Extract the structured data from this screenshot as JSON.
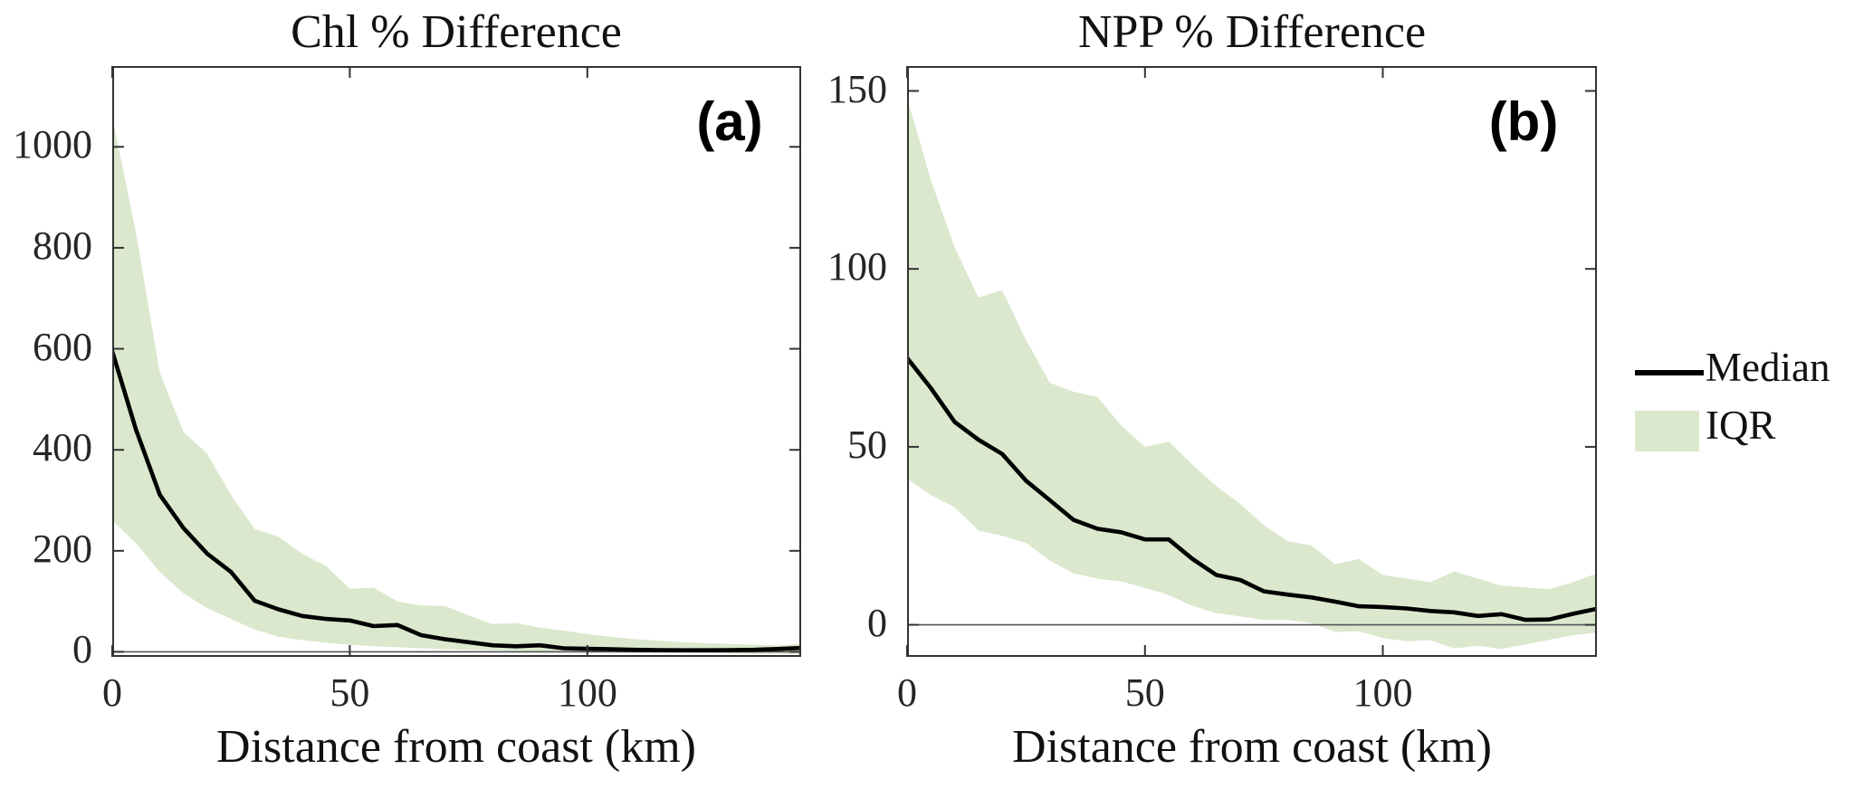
{
  "figure": {
    "background": "#ffffff",
    "panel_letters": [
      "(a)",
      "(b)"
    ]
  },
  "colors": {
    "iqr_band": "#dbe8cd",
    "median_line": "#000000",
    "axis": "#333333",
    "zero_line": "#555555",
    "text": "#262626"
  },
  "legend": {
    "position": "right-outside",
    "items": [
      {
        "label": "Median",
        "type": "line"
      },
      {
        "label": "IQR",
        "type": "patch"
      }
    ]
  },
  "chart_data": [
    {
      "type": "line",
      "panel_label": "(a)",
      "title": "Chl % Difference",
      "xlabel": "Distance from coast (km)",
      "grid": false,
      "xlim": [
        0,
        145
      ],
      "ylim": [
        -10,
        1160
      ],
      "xticks": [
        0,
        50,
        100
      ],
      "yticks": [
        0,
        200,
        400,
        600,
        800,
        1000
      ],
      "zero_line": true,
      "x": [
        0,
        5,
        10,
        15,
        20,
        25,
        30,
        35,
        40,
        45,
        50,
        55,
        60,
        65,
        70,
        75,
        80,
        85,
        90,
        95,
        100,
        105,
        110,
        115,
        120,
        125,
        130,
        135,
        140,
        145
      ],
      "series": [
        {
          "name": "Median",
          "values": [
            595,
            440,
            311,
            245,
            194,
            158,
            101,
            84,
            71,
            65,
            62,
            51,
            53,
            33,
            25,
            19,
            13,
            11,
            13,
            7,
            6,
            5,
            4,
            3.5,
            3,
            3,
            3.5,
            4,
            5.5,
            7.5
          ]
        },
        {
          "name": "IQR upper",
          "values": [
            1060,
            830,
            553,
            435,
            392,
            310,
            243,
            228,
            194,
            170,
            125,
            127,
            100,
            92,
            91,
            72,
            55,
            57,
            48,
            42,
            35,
            30,
            25,
            22,
            19,
            17,
            15.5,
            14,
            12.5,
            16
          ]
        },
        {
          "name": "IQR lower",
          "values": [
            260,
            215,
            158,
            116,
            86,
            65,
            44,
            30,
            23,
            18,
            14,
            11,
            9,
            7,
            5,
            4,
            3,
            2,
            1,
            1,
            0.5,
            0,
            0,
            -0.5,
            -1,
            -2,
            -3,
            -4,
            -3.5,
            -5
          ]
        }
      ]
    },
    {
      "type": "line",
      "panel_label": "(b)",
      "title": "NPP % Difference",
      "xlabel": "Distance from coast (km)",
      "grid": false,
      "xlim": [
        0,
        145
      ],
      "ylim": [
        -9,
        157
      ],
      "xticks": [
        0,
        50,
        100
      ],
      "yticks": [
        0,
        50,
        100,
        150
      ],
      "zero_line": true,
      "x": [
        0,
        5,
        10,
        15,
        20,
        25,
        30,
        35,
        40,
        45,
        50,
        55,
        60,
        65,
        70,
        75,
        80,
        85,
        90,
        95,
        100,
        105,
        110,
        115,
        120,
        125,
        130,
        135,
        140,
        145
      ],
      "series": [
        {
          "name": "Median",
          "values": [
            75,
            66.5,
            57,
            52,
            48,
            40.5,
            35,
            29.5,
            27,
            26,
            24,
            24,
            18.5,
            14,
            12.6,
            9.4,
            8.5,
            7.7,
            6.5,
            5.2,
            5,
            4.6,
            3.9,
            3.5,
            2.5,
            3,
            1.4,
            1.5,
            3.1,
            4.5
          ]
        },
        {
          "name": "IQR upper",
          "values": [
            148,
            125,
            106,
            92,
            94,
            80,
            68,
            65.5,
            64,
            56,
            50,
            51.5,
            45,
            39,
            34,
            28,
            23.5,
            22.3,
            17,
            18.5,
            14,
            13,
            12,
            15,
            13,
            11,
            10.5,
            10,
            12,
            14.5
          ]
        },
        {
          "name": "IQR lower",
          "values": [
            41,
            36.5,
            33,
            26.5,
            25,
            23,
            18,
            14.5,
            13,
            12.2,
            10.4,
            8.4,
            5.3,
            3.3,
            2.4,
            1.4,
            1.4,
            0.5,
            -2,
            -1.8,
            -3.7,
            -4.6,
            -4.3,
            -6.6,
            -5.9,
            -6.8,
            -5.5,
            -4.2,
            -2.9,
            -2.2
          ]
        }
      ]
    }
  ]
}
